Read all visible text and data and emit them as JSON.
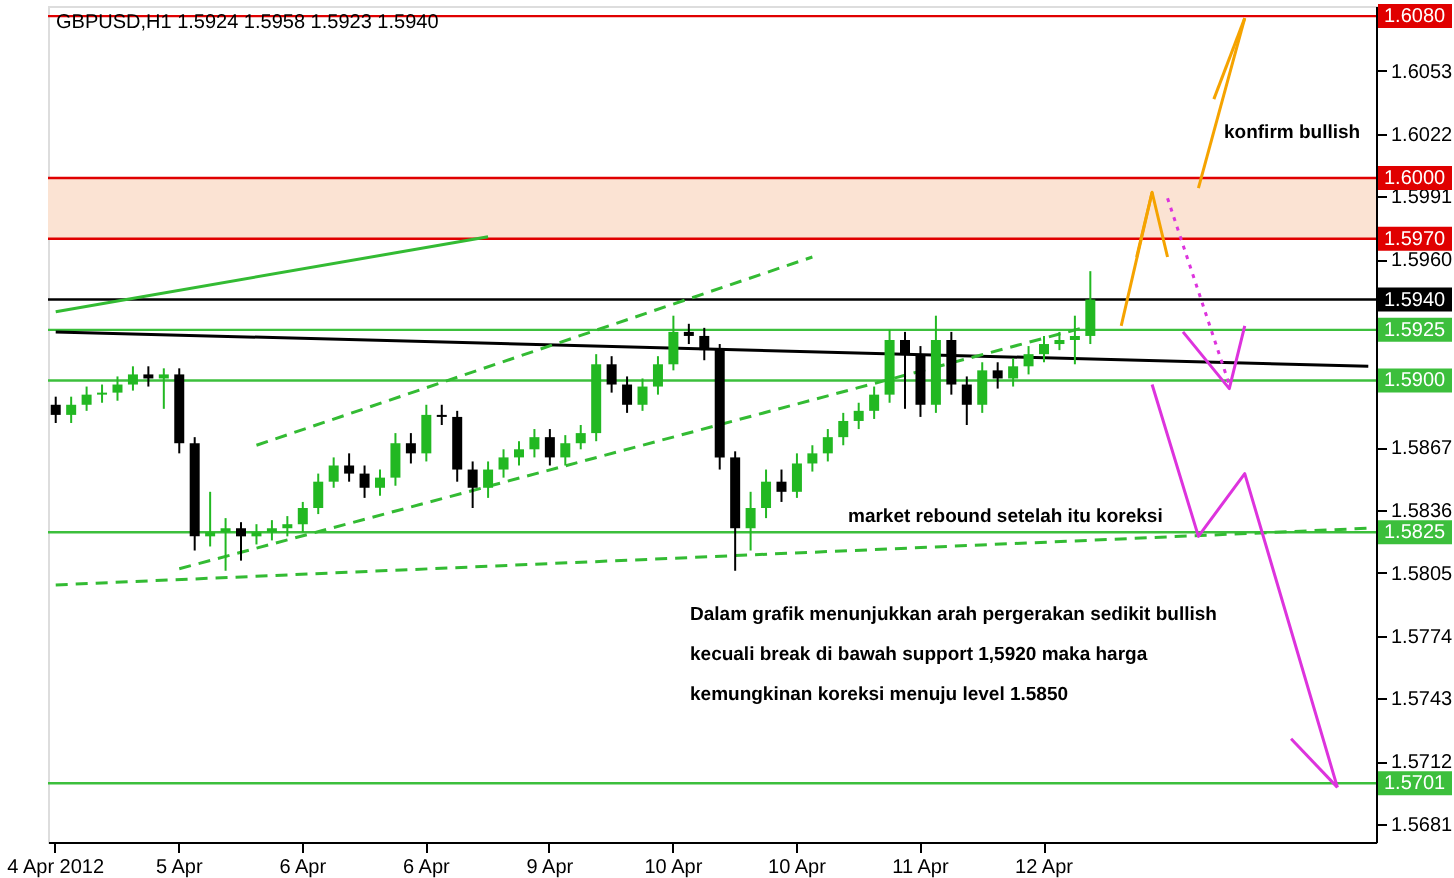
{
  "chart_data": {
    "type": "candlestick",
    "title": "GBPUSD,H1  1.5924  1.5958  1.5923  1.5940",
    "categories": [
      "4 Apr 2012",
      null,
      null,
      null,
      null,
      null,
      null,
      null,
      "5 Apr",
      null,
      null,
      null,
      null,
      null,
      null,
      null,
      "6 Apr",
      null,
      null,
      null,
      null,
      null,
      null,
      null,
      "6 Apr",
      null,
      null,
      null,
      null,
      null,
      null,
      null,
      "9 Apr",
      null,
      null,
      null,
      null,
      null,
      null,
      null,
      "10 Apr",
      null,
      null,
      null,
      null,
      null,
      null,
      null,
      "10 Apr",
      null,
      null,
      null,
      null,
      null,
      null,
      null,
      "11 Apr",
      null,
      null,
      null,
      null,
      null,
      null,
      null,
      "12 Apr",
      null,
      null,
      null,
      null,
      null,
      null,
      null,
      null,
      null,
      null,
      null,
      null,
      null,
      null,
      null,
      null,
      null,
      null,
      null,
      null,
      null
    ],
    "ohlc": [
      [
        1.5888,
        1.5892,
        1.5879,
        1.5883
      ],
      [
        1.5883,
        1.5892,
        1.5879,
        1.5888
      ],
      [
        1.5888,
        1.5897,
        1.5885,
        1.5893
      ],
      [
        1.5893,
        1.5898,
        1.5889,
        1.5894
      ],
      [
        1.5894,
        1.5902,
        1.589,
        1.5898
      ],
      [
        1.5898,
        1.5907,
        1.5895,
        1.5903
      ],
      [
        1.5903,
        1.5907,
        1.5897,
        1.5901
      ],
      [
        1.5901,
        1.5906,
        1.5886,
        1.5903
      ],
      [
        1.5903,
        1.5906,
        1.5864,
        1.5869
      ],
      [
        1.5869,
        1.5872,
        1.5816,
        1.5823
      ],
      [
        1.5823,
        1.5845,
        1.5818,
        1.5825
      ],
      [
        1.5825,
        1.5832,
        1.5806,
        1.5827
      ],
      [
        1.5827,
        1.583,
        1.5811,
        1.5823
      ],
      [
        1.5823,
        1.5829,
        1.5819,
        1.5825
      ],
      [
        1.5825,
        1.5831,
        1.5821,
        1.5827
      ],
      [
        1.5827,
        1.5833,
        1.5823,
        1.5829
      ],
      [
        1.5829,
        1.584,
        1.5825,
        1.5837
      ],
      [
        1.5837,
        1.5854,
        1.5834,
        1.585
      ],
      [
        1.585,
        1.5862,
        1.5847,
        1.5858
      ],
      [
        1.5858,
        1.5864,
        1.585,
        1.5854
      ],
      [
        1.5854,
        1.5858,
        1.5842,
        1.5847
      ],
      [
        1.5847,
        1.5856,
        1.5843,
        1.5852
      ],
      [
        1.5852,
        1.5874,
        1.5848,
        1.5869
      ],
      [
        1.5869,
        1.5874,
        1.5859,
        1.5864
      ],
      [
        1.5864,
        1.5888,
        1.586,
        1.5883
      ],
      [
        1.5883,
        1.5888,
        1.5878,
        1.5882
      ],
      [
        1.5882,
        1.5885,
        1.585,
        1.5856
      ],
      [
        1.5856,
        1.586,
        1.5837,
        1.5847
      ],
      [
        1.5847,
        1.586,
        1.5842,
        1.5856
      ],
      [
        1.5856,
        1.5866,
        1.5852,
        1.5862
      ],
      [
        1.5862,
        1.587,
        1.5858,
        1.5866
      ],
      [
        1.5866,
        1.5876,
        1.5862,
        1.5872
      ],
      [
        1.5872,
        1.5876,
        1.5858,
        1.5862
      ],
      [
        1.5862,
        1.5873,
        1.5858,
        1.5869
      ],
      [
        1.5869,
        1.5878,
        1.5866,
        1.5874
      ],
      [
        1.5874,
        1.5913,
        1.587,
        1.5908
      ],
      [
        1.5908,
        1.5912,
        1.5894,
        1.5898
      ],
      [
        1.5898,
        1.5902,
        1.5884,
        1.5888
      ],
      [
        1.5888,
        1.5901,
        1.5885,
        1.5897
      ],
      [
        1.5897,
        1.5912,
        1.5893,
        1.5908
      ],
      [
        1.5908,
        1.5932,
        1.5905,
        1.5924
      ],
      [
        1.5924,
        1.5928,
        1.5918,
        1.5922
      ],
      [
        1.5922,
        1.5926,
        1.591,
        1.5915
      ],
      [
        1.5915,
        1.5918,
        1.5856,
        1.5862
      ],
      [
        1.5862,
        1.5865,
        1.5806,
        1.5827
      ],
      [
        1.5827,
        1.5845,
        1.5816,
        1.5837
      ],
      [
        1.5837,
        1.5856,
        1.5832,
        1.585
      ],
      [
        1.585,
        1.5856,
        1.584,
        1.5845
      ],
      [
        1.5845,
        1.5864,
        1.5842,
        1.5859
      ],
      [
        1.5859,
        1.5868,
        1.5855,
        1.5864
      ],
      [
        1.5864,
        1.5876,
        1.586,
        1.5872
      ],
      [
        1.5872,
        1.5884,
        1.5868,
        1.588
      ],
      [
        1.588,
        1.5889,
        1.5876,
        1.5885
      ],
      [
        1.5885,
        1.5897,
        1.5881,
        1.5893
      ],
      [
        1.5893,
        1.5925,
        1.5889,
        1.592
      ],
      [
        1.592,
        1.5924,
        1.5886,
        1.5913
      ],
      [
        1.5913,
        1.5917,
        1.5882,
        1.5888
      ],
      [
        1.5888,
        1.5932,
        1.5884,
        1.592
      ],
      [
        1.592,
        1.5924,
        1.5893,
        1.5898
      ],
      [
        1.5898,
        1.5902,
        1.5878,
        1.5888
      ],
      [
        1.5888,
        1.5909,
        1.5884,
        1.5905
      ],
      [
        1.5905,
        1.5909,
        1.5896,
        1.5901
      ],
      [
        1.5901,
        1.5911,
        1.5897,
        1.5907
      ],
      [
        1.5907,
        1.5917,
        1.5903,
        1.5913
      ],
      [
        1.5913,
        1.5922,
        1.5909,
        1.5918
      ],
      [
        1.5918,
        1.5924,
        1.5915,
        1.592
      ],
      [
        1.592,
        1.5932,
        1.5908,
        1.5922
      ],
      [
        1.5922,
        1.5954,
        1.5918,
        1.594
      ],
      null,
      null,
      null,
      null,
      null,
      null,
      null,
      null,
      null,
      null,
      null,
      null,
      null,
      null,
      null,
      null,
      null,
      null
    ],
    "colors": [
      "#000000",
      "#22b822",
      "#22b822",
      "#22b822",
      "#22b822",
      "#22b822",
      "#000000",
      "#22b822",
      "#000000",
      "#000000",
      "#22b822",
      "#22b822",
      "#000000",
      "#22b822",
      "#22b822",
      "#22b822",
      "#22b822",
      "#22b822",
      "#22b822",
      "#000000",
      "#000000",
      "#22b822",
      "#22b822",
      "#000000",
      "#22b822",
      "#000000",
      "#000000",
      "#000000",
      "#22b822",
      "#22b822",
      "#22b822",
      "#22b822",
      "#000000",
      "#22b822",
      "#22b822",
      "#22b822",
      "#000000",
      "#000000",
      "#22b822",
      "#22b822",
      "#22b822",
      "#000000",
      "#000000",
      "#000000",
      "#000000",
      "#22b822",
      "#22b822",
      "#000000",
      "#22b822",
      "#22b822",
      "#22b822",
      "#22b822",
      "#22b822",
      "#22b822",
      "#22b822",
      "#000000",
      "#000000",
      "#22b822",
      "#000000",
      "#000000",
      "#22b822",
      "#000000",
      "#22b822",
      "#22b822",
      "#22b822",
      "#22b822",
      "#22b822",
      "#22b822",
      null,
      null,
      null,
      null,
      null,
      null,
      null,
      null,
      null,
      null,
      null,
      null,
      null,
      null,
      null,
      null,
      null,
      null
    ],
    "series": [
      {
        "type": "line",
        "color": "#000000",
        "values": [
          1.5924,
          null,
          null,
          null,
          null,
          null,
          null,
          null,
          null,
          null,
          null,
          null,
          null,
          null,
          null,
          null,
          null,
          null,
          null,
          null,
          null,
          null,
          null,
          null,
          null,
          null,
          null,
          null,
          null,
          null,
          null,
          null,
          null,
          null,
          null,
          null,
          null,
          null,
          null,
          null,
          null,
          null,
          null,
          null,
          null,
          null,
          null,
          null,
          null,
          null,
          null,
          null,
          null,
          null,
          null,
          null,
          null,
          null,
          null,
          null,
          null,
          null,
          null,
          null,
          null,
          null,
          null,
          null,
          null,
          null,
          null,
          null,
          null,
          null,
          null,
          null,
          null,
          null,
          null,
          null,
          null,
          null,
          null,
          null,
          null,
          1.5907
        ]
      },
      {
        "type": "line",
        "color": "#33bb33",
        "values": [
          1.5934,
          null,
          null,
          null,
          null,
          null,
          null,
          null,
          null,
          null,
          null,
          null,
          null,
          null,
          null,
          null,
          null,
          null,
          null,
          null,
          null,
          null,
          null,
          null,
          null,
          null,
          null,
          null,
          1.5971,
          null,
          null,
          null,
          null,
          null,
          null,
          null,
          null,
          null,
          null,
          null,
          null,
          null,
          null,
          null,
          null,
          null,
          null,
          null,
          null,
          null,
          null,
          null,
          null,
          null,
          null,
          null,
          null,
          null,
          null,
          null,
          null,
          null,
          null,
          null,
          null,
          null,
          null,
          null,
          null,
          null,
          null,
          null,
          null,
          null,
          null,
          null,
          null,
          null,
          null,
          null,
          null,
          null,
          null,
          null,
          null,
          null
        ]
      },
      {
        "type": "line",
        "color": "#33bb33",
        "line_style": "dashed",
        "values": [
          1.5799,
          null,
          null,
          null,
          null,
          null,
          null,
          null,
          null,
          null,
          null,
          null,
          null,
          null,
          null,
          null,
          null,
          null,
          null,
          null,
          null,
          null,
          null,
          null,
          null,
          null,
          null,
          null,
          null,
          null,
          null,
          null,
          null,
          null,
          null,
          null,
          null,
          null,
          null,
          null,
          null,
          null,
          null,
          null,
          null,
          null,
          null,
          null,
          null,
          null,
          null,
          null,
          null,
          null,
          null,
          null,
          null,
          null,
          null,
          null,
          null,
          null,
          null,
          null,
          null,
          null,
          null,
          null,
          null,
          null,
          null,
          null,
          null,
          null,
          null,
          null,
          null,
          null,
          null,
          null,
          null,
          null,
          null,
          null,
          null,
          1.5827
        ]
      },
      {
        "type": "line",
        "color": "#33bb33",
        "line_style": "dashed",
        "values": [
          null,
          null,
          null,
          null,
          null,
          null,
          null,
          null,
          1.5807,
          null,
          null,
          null,
          null,
          null,
          null,
          null,
          null,
          null,
          null,
          null,
          null,
          null,
          null,
          null,
          null,
          null,
          null,
          null,
          null,
          null,
          null,
          null,
          null,
          null,
          null,
          null,
          null,
          null,
          null,
          null,
          null,
          null,
          null,
          null,
          null,
          null,
          null,
          null,
          null,
          null,
          null,
          null,
          null,
          null,
          null,
          null,
          null,
          null,
          null,
          null,
          null,
          null,
          null,
          null,
          null,
          null,
          null,
          1.5927,
          null,
          null,
          null,
          null,
          null,
          null,
          null,
          null,
          null,
          null,
          null,
          null,
          null,
          null,
          null,
          null,
          null,
          null
        ]
      },
      {
        "type": "line",
        "color": "#33bb33",
        "line_style": "dashed",
        "values": [
          null,
          null,
          null,
          null,
          null,
          null,
          null,
          null,
          null,
          null,
          null,
          null,
          null,
          1.5868,
          null,
          null,
          null,
          null,
          null,
          null,
          null,
          null,
          null,
          null,
          null,
          null,
          null,
          null,
          null,
          null,
          null,
          null,
          null,
          null,
          null,
          null,
          null,
          null,
          null,
          null,
          null,
          null,
          null,
          null,
          null,
          null,
          null,
          null,
          null,
          1.5961,
          null,
          null,
          null,
          null,
          null,
          null,
          null,
          null,
          null,
          null,
          null,
          null,
          null,
          null,
          null,
          null,
          null,
          null,
          null,
          null,
          null,
          null,
          null,
          null,
          null,
          null,
          null,
          null,
          null,
          null,
          null,
          null,
          null,
          null,
          null,
          null
        ]
      },
      {
        "type": "line",
        "color": "#f5a300",
        "values": [
          null,
          null,
          null,
          null,
          null,
          null,
          null,
          null,
          null,
          null,
          null,
          null,
          null,
          null,
          null,
          null,
          null,
          null,
          null,
          null,
          null,
          null,
          null,
          null,
          null,
          null,
          null,
          null,
          null,
          null,
          null,
          null,
          null,
          null,
          null,
          null,
          null,
          null,
          null,
          null,
          null,
          null,
          null,
          null,
          null,
          null,
          null,
          null,
          null,
          null,
          null,
          null,
          null,
          null,
          null,
          null,
          null,
          null,
          null,
          null,
          null,
          null,
          null,
          null,
          null,
          null,
          null,
          null,
          null,
          1.5927,
          null,
          1.5993,
          null,
          null,
          null,
          null,
          null,
          null,
          null,
          null,
          null,
          null,
          null,
          null,
          null,
          null
        ]
      },
      {
        "type": "line",
        "color": "#f5a300",
        "values": [
          null,
          null,
          null,
          null,
          null,
          null,
          null,
          null,
          null,
          null,
          null,
          null,
          null,
          null,
          null,
          null,
          null,
          null,
          null,
          null,
          null,
          null,
          null,
          null,
          null,
          null,
          null,
          null,
          null,
          null,
          null,
          null,
          null,
          null,
          null,
          null,
          null,
          null,
          null,
          null,
          null,
          null,
          null,
          null,
          null,
          null,
          null,
          null,
          null,
          null,
          null,
          null,
          null,
          null,
          null,
          null,
          null,
          null,
          null,
          null,
          null,
          null,
          null,
          null,
          null,
          null,
          null,
          null,
          null,
          null,
          1.5961,
          1.5993,
          1.5961,
          null,
          null,
          null,
          null,
          null,
          null,
          null,
          null,
          null,
          null,
          null,
          null,
          null
        ]
      },
      {
        "type": "line",
        "color": "#f5a300",
        "values": [
          null,
          null,
          null,
          null,
          null,
          null,
          null,
          null,
          null,
          null,
          null,
          null,
          null,
          null,
          null,
          null,
          null,
          null,
          null,
          null,
          null,
          null,
          null,
          null,
          null,
          null,
          null,
          null,
          null,
          null,
          null,
          null,
          null,
          null,
          null,
          null,
          null,
          null,
          null,
          null,
          null,
          null,
          null,
          null,
          null,
          null,
          null,
          null,
          null,
          null,
          null,
          null,
          null,
          null,
          null,
          null,
          null,
          null,
          null,
          null,
          null,
          null,
          null,
          null,
          null,
          null,
          null,
          null,
          null,
          null,
          null,
          null,
          null,
          null,
          1.5995,
          null,
          null,
          1.6079,
          null,
          null,
          null,
          null,
          null,
          null,
          null,
          null
        ]
      },
      {
        "type": "line",
        "color": "#f5a300",
        "values": [
          null,
          null,
          null,
          null,
          null,
          null,
          null,
          null,
          null,
          null,
          null,
          null,
          null,
          null,
          null,
          null,
          null,
          null,
          null,
          null,
          null,
          null,
          null,
          null,
          null,
          null,
          null,
          null,
          null,
          null,
          null,
          null,
          null,
          null,
          null,
          null,
          null,
          null,
          null,
          null,
          null,
          null,
          null,
          null,
          null,
          null,
          null,
          null,
          null,
          null,
          null,
          null,
          null,
          null,
          null,
          null,
          null,
          null,
          null,
          null,
          null,
          null,
          null,
          null,
          null,
          null,
          null,
          null,
          null,
          null,
          null,
          null,
          null,
          null,
          null,
          1.6039,
          null,
          1.6079,
          null,
          null,
          null,
          null,
          null,
          null,
          null,
          null
        ]
      },
      {
        "type": "line",
        "color": "#dd33dd",
        "line_style": "dotted",
        "values": [
          null,
          null,
          null,
          null,
          null,
          null,
          null,
          null,
          null,
          null,
          null,
          null,
          null,
          null,
          null,
          null,
          null,
          null,
          null,
          null,
          null,
          null,
          null,
          null,
          null,
          null,
          null,
          null,
          null,
          null,
          null,
          null,
          null,
          null,
          null,
          null,
          null,
          null,
          null,
          null,
          null,
          null,
          null,
          null,
          null,
          null,
          null,
          null,
          null,
          null,
          null,
          null,
          null,
          null,
          null,
          null,
          null,
          null,
          null,
          null,
          null,
          null,
          null,
          null,
          null,
          null,
          null,
          null,
          null,
          null,
          null,
          null,
          1.599,
          null,
          null,
          null,
          1.5898,
          null,
          null,
          null,
          null,
          null,
          null,
          null,
          null,
          null
        ]
      },
      {
        "type": "line",
        "color": "#dd33dd",
        "values": [
          null,
          null,
          null,
          null,
          null,
          null,
          null,
          null,
          null,
          null,
          null,
          null,
          null,
          null,
          null,
          null,
          null,
          null,
          null,
          null,
          null,
          null,
          null,
          null,
          null,
          null,
          null,
          null,
          null,
          null,
          null,
          null,
          null,
          null,
          null,
          null,
          null,
          null,
          null,
          null,
          null,
          null,
          null,
          null,
          null,
          null,
          null,
          null,
          null,
          null,
          null,
          null,
          null,
          null,
          null,
          null,
          null,
          null,
          null,
          null,
          null,
          null,
          null,
          null,
          null,
          null,
          null,
          null,
          null,
          null,
          null,
          null,
          null,
          1.5924,
          null,
          null,
          1.5896,
          1.5927,
          null,
          null,
          null,
          null,
          null,
          null,
          null,
          null
        ]
      },
      {
        "type": "line",
        "color": "#dd33dd",
        "values": [
          null,
          null,
          null,
          null,
          null,
          null,
          null,
          null,
          null,
          null,
          null,
          null,
          null,
          null,
          null,
          null,
          null,
          null,
          null,
          null,
          null,
          null,
          null,
          null,
          null,
          null,
          null,
          null,
          null,
          null,
          null,
          null,
          null,
          null,
          null,
          null,
          null,
          null,
          null,
          null,
          null,
          null,
          null,
          null,
          null,
          null,
          null,
          null,
          null,
          null,
          null,
          null,
          null,
          null,
          null,
          null,
          null,
          null,
          null,
          null,
          null,
          null,
          null,
          null,
          null,
          null,
          null,
          null,
          null,
          null,
          null,
          1.5898,
          null,
          null,
          1.5823,
          null,
          null,
          1.5854,
          null,
          null,
          null,
          null,
          null,
          1.5699,
          null,
          null
        ]
      },
      {
        "type": "line",
        "color": "#dd33dd",
        "values": [
          null,
          null,
          null,
          null,
          null,
          null,
          null,
          null,
          null,
          null,
          null,
          null,
          null,
          null,
          null,
          null,
          null,
          null,
          null,
          null,
          null,
          null,
          null,
          null,
          null,
          null,
          null,
          null,
          null,
          null,
          null,
          null,
          null,
          null,
          null,
          null,
          null,
          null,
          null,
          null,
          null,
          null,
          null,
          null,
          null,
          null,
          null,
          null,
          null,
          null,
          null,
          null,
          null,
          null,
          null,
          null,
          null,
          null,
          null,
          null,
          null,
          null,
          null,
          null,
          null,
          null,
          null,
          null,
          null,
          null,
          null,
          null,
          null,
          null,
          null,
          null,
          null,
          null,
          null,
          null,
          1.5723,
          null,
          null,
          1.5699,
          null,
          null
        ]
      }
    ],
    "ref_lines": [
      {
        "axis": "y",
        "value": 1.608,
        "label": "1.6080",
        "color": "#e00000"
      },
      {
        "axis": "y",
        "value": 1.6,
        "label": "1.6000",
        "color": "#e00000"
      },
      {
        "axis": "y",
        "value": 1.597,
        "label": "1.5970",
        "color": "#e00000"
      },
      {
        "axis": "y",
        "value": 1.594,
        "label": "1.5940",
        "color": "#000000"
      },
      {
        "axis": "y",
        "value": 1.5925,
        "label": "1.5925",
        "color": "#3cbf3c"
      },
      {
        "axis": "y",
        "value": 1.59,
        "label": "1.5900",
        "color": "#3cbf3c"
      },
      {
        "axis": "y",
        "value": 1.5825,
        "label": "1.5825",
        "color": "#3cbf3c"
      },
      {
        "axis": "y",
        "value": 1.5701,
        "label": "1.5701",
        "color": "#3cbf3c"
      }
    ],
    "bands": [
      {
        "axis": "y",
        "from": 1.597,
        "to": 1.6,
        "color": "#fbe3d3"
      }
    ],
    "annotations": [
      "konfirm bullish",
      "market rebound setelah itu koreksi",
      "Dalam grafik menunjukkan arah pergerakan sedikit bullish\nkecuali break di bawah support 1,5920 maka harga\nkemungkinan koreksi menuju level 1.5850"
    ],
    "ylim": [
      1.5672,
      1.6085
    ],
    "yticks": [
      1.5681,
      1.5712,
      1.5743,
      1.5774,
      1.5805,
      1.5836,
      1.5867,
      {
        "value": 1.596,
        "label": "1.5960"
      },
      1.5991,
      1.6022,
      1.6053
    ],
    "grid": false
  }
}
